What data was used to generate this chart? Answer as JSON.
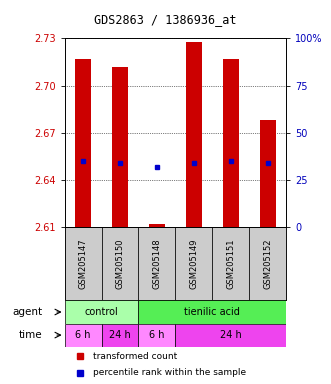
{
  "title": "GDS2863 / 1386936_at",
  "samples": [
    "GSM205147",
    "GSM205150",
    "GSM205148",
    "GSM205149",
    "GSM205151",
    "GSM205152"
  ],
  "bar_bottoms": [
    2.61,
    2.61,
    2.61,
    2.61,
    2.61,
    2.61
  ],
  "bar_tops": [
    2.717,
    2.712,
    2.612,
    2.728,
    2.717,
    2.678
  ],
  "blue_dot_y": [
    2.652,
    2.651,
    2.648,
    2.651,
    2.652,
    2.651
  ],
  "ylim_left": [
    2.61,
    2.73
  ],
  "yticks_left": [
    2.61,
    2.64,
    2.67,
    2.7,
    2.73
  ],
  "yticks_right": [
    0,
    25,
    50,
    75,
    100
  ],
  "ylim_right": [
    0,
    100
  ],
  "bar_color": "#CC0000",
  "dot_color": "#0000CC",
  "background_color": "#FFFFFF",
  "label_color_left": "#CC0000",
  "label_color_right": "#0000BB",
  "agent_groups": [
    {
      "label": "control",
      "start": 0,
      "end": 2,
      "color": "#AAFFAA"
    },
    {
      "label": "tienilic acid",
      "start": 2,
      "end": 6,
      "color": "#55EE55"
    }
  ],
  "time_groups": [
    {
      "label": "6 h",
      "start": 0,
      "end": 1,
      "color": "#FF88FF"
    },
    {
      "label": "24 h",
      "start": 1,
      "end": 2,
      "color": "#EE44EE"
    },
    {
      "label": "6 h",
      "start": 2,
      "end": 3,
      "color": "#FF88FF"
    },
    {
      "label": "24 h",
      "start": 3,
      "end": 6,
      "color": "#EE44EE"
    }
  ],
  "legend_red_label": "transformed count",
  "legend_blue_label": "percentile rank within the sample"
}
